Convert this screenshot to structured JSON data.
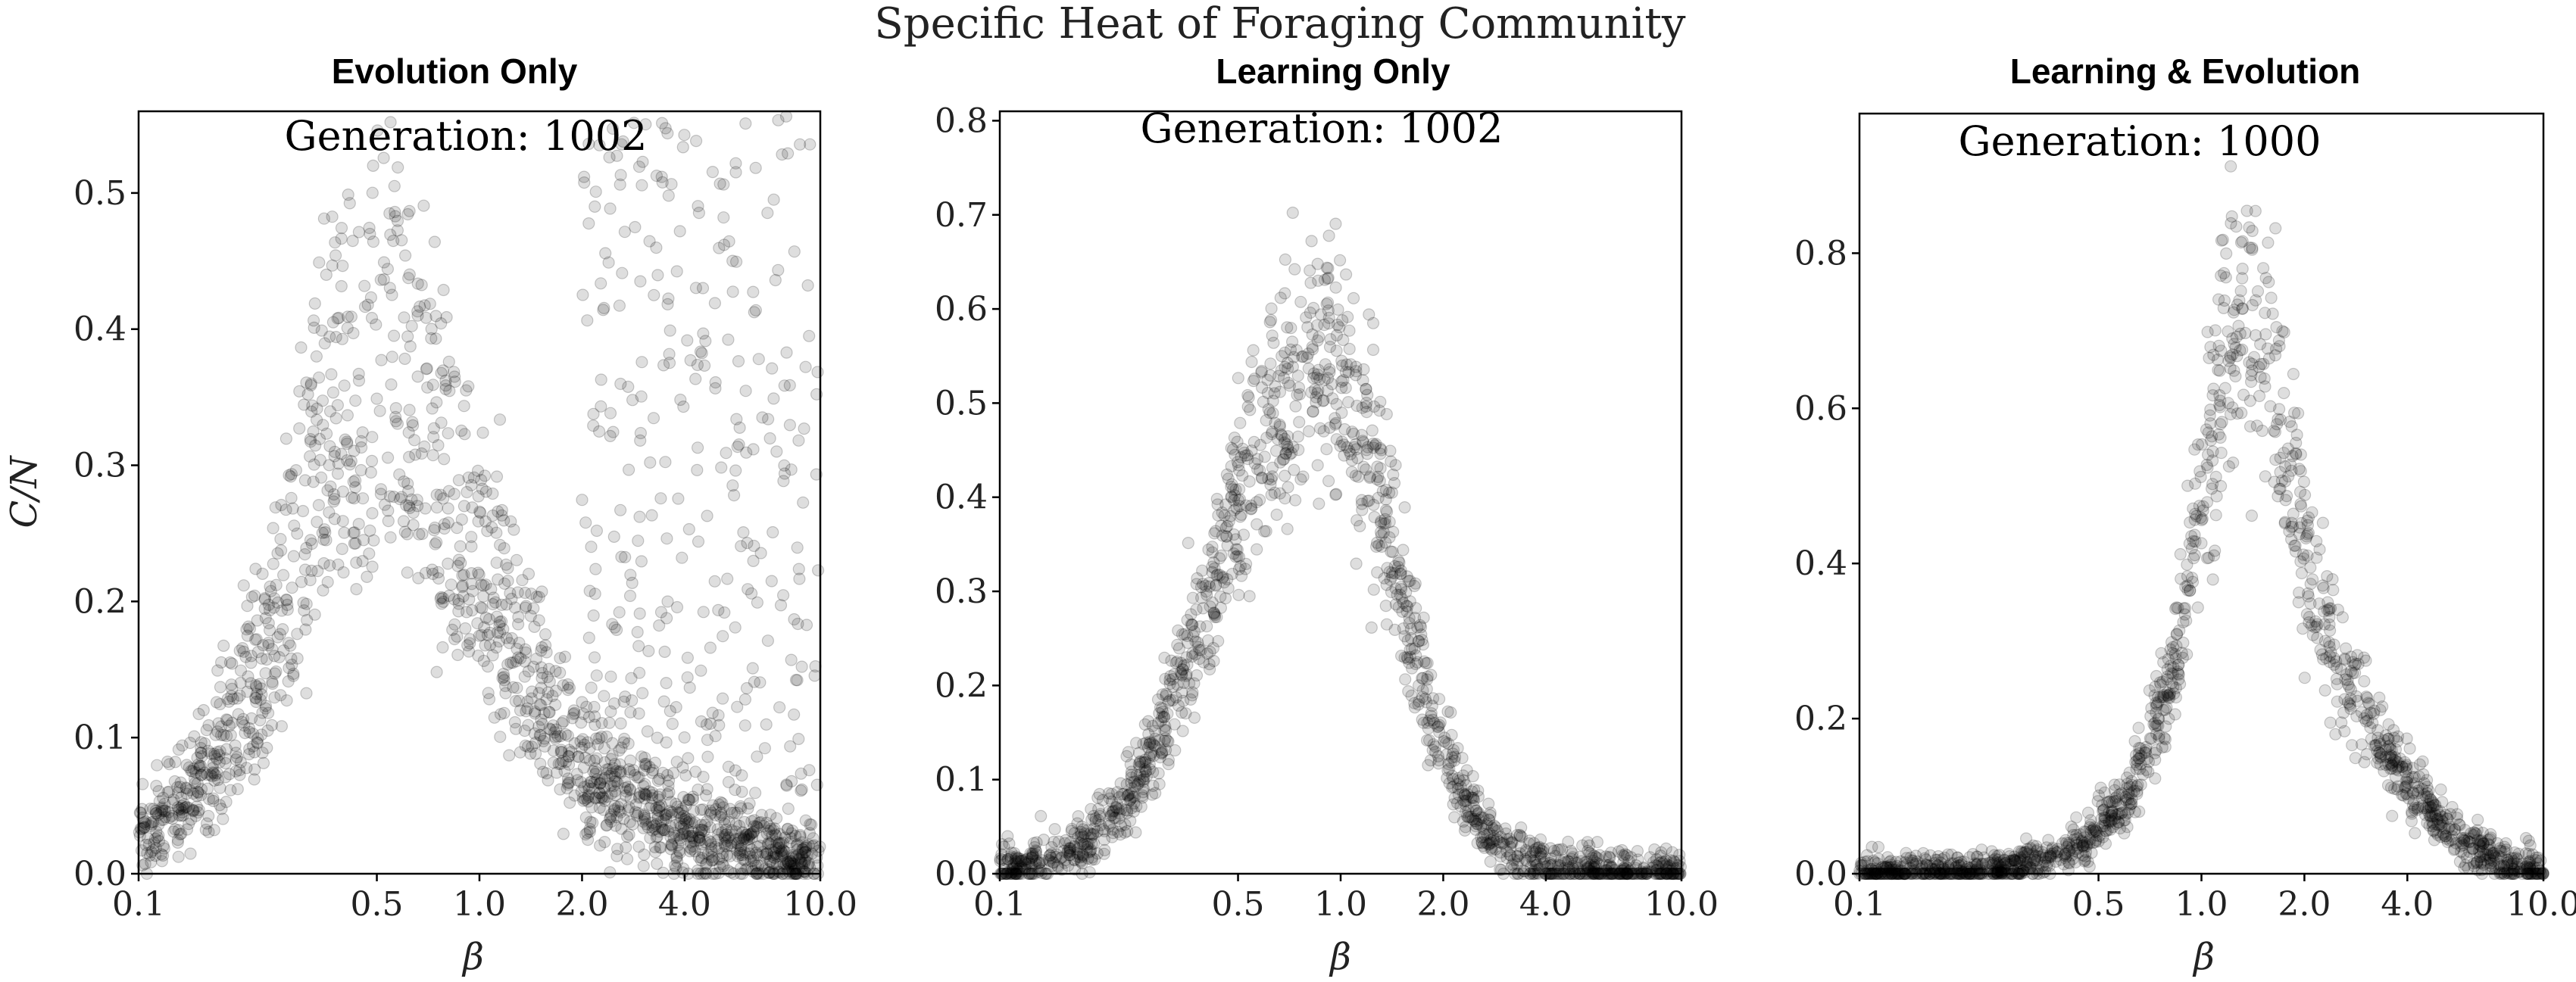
{
  "figure": {
    "suptitle": "Specific Heat of Foraging Community"
  },
  "chart_data": [
    {
      "type": "scatter",
      "title": "Evolution Only",
      "annotation": "Generation: 1002",
      "xlabel": "β",
      "ylabel": "C/N",
      "xscale": "log",
      "xlim": [
        0.1,
        10.0
      ],
      "ylim": [
        0.0,
        0.56
      ],
      "xticks": [
        0.1,
        0.5,
        1.0,
        2.0,
        4.0,
        10.0
      ],
      "xtick_labels": [
        "0.1",
        "0.5",
        "1.0",
        "2.0",
        "4.0",
        "10.0"
      ],
      "yticks": [
        0.0,
        0.1,
        0.2,
        0.3,
        0.4,
        0.5
      ],
      "ytick_labels": [
        "0.0",
        "0.1",
        "0.2",
        "0.3",
        "0.4",
        "0.5"
      ],
      "grid": false,
      "marker_color": "#000000",
      "series": [
        {
          "peak_beta": 0.55,
          "band_peaks": [
            0.27,
            0.31,
            0.35,
            0.44,
            0.5
          ],
          "low_end_value": 0.025,
          "x": [
            0.1,
            0.12,
            0.15,
            0.18,
            0.22,
            0.26,
            0.3,
            0.35,
            0.4,
            0.45,
            0.5,
            0.55,
            0.6,
            0.7,
            0.8,
            1.0,
            1.3,
            1.6,
            2.0,
            2.5,
            3.0,
            4.0,
            5.0,
            6.0,
            8.0,
            10.0
          ],
          "y": [
            0.028,
            0.04,
            0.06,
            0.09,
            0.13,
            0.18,
            0.23,
            0.28,
            0.32,
            0.34,
            0.35,
            0.35,
            0.34,
            0.3,
            0.26,
            0.2,
            0.15,
            0.11,
            0.08,
            0.06,
            0.045,
            0.03,
            0.022,
            0.018,
            0.012,
            0.01
          ],
          "scatter_cloud": {
            "x_range": [
              2.0,
              10.0
            ],
            "y_range": [
              0.0,
              0.56
            ]
          }
        }
      ]
    },
    {
      "type": "scatter",
      "title": "Learning Only",
      "annotation": "Generation: 1002",
      "xlabel": "β",
      "xscale": "log",
      "xlim": [
        0.1,
        10.0
      ],
      "ylim": [
        0.0,
        0.81
      ],
      "xticks": [
        0.1,
        0.5,
        1.0,
        2.0,
        4.0,
        10.0
      ],
      "xtick_labels": [
        "0.1",
        "0.5",
        "1.0",
        "2.0",
        "4.0",
        "10.0"
      ],
      "yticks": [
        0.0,
        0.1,
        0.2,
        0.3,
        0.4,
        0.5,
        0.6,
        0.7,
        0.8
      ],
      "ytick_labels": [
        "0.0",
        "0.1",
        "0.2",
        "0.3",
        "0.4",
        "0.5",
        "0.6",
        "0.7",
        "0.8"
      ],
      "grid": false,
      "marker_color": "#000000",
      "series": [
        {
          "peak_beta": 0.9,
          "peak_value": 0.6,
          "x": [
            0.1,
            0.15,
            0.2,
            0.25,
            0.3,
            0.4,
            0.5,
            0.6,
            0.7,
            0.8,
            0.9,
            1.0,
            1.2,
            1.5,
            1.8,
            2.2,
            2.6,
            3.0,
            4.0,
            6.0,
            10.0
          ],
          "y": [
            0.005,
            0.02,
            0.05,
            0.1,
            0.16,
            0.3,
            0.42,
            0.5,
            0.55,
            0.58,
            0.59,
            0.57,
            0.48,
            0.32,
            0.2,
            0.1,
            0.05,
            0.025,
            0.008,
            0.002,
            0.0
          ]
        }
      ]
    },
    {
      "type": "scatter",
      "title": "Learning & Evolution",
      "annotation": "Generation: 1000",
      "xlabel": "β",
      "xscale": "log",
      "xlim": [
        0.1,
        10.0
      ],
      "ylim": [
        0.0,
        0.98
      ],
      "xticks": [
        0.1,
        0.5,
        1.0,
        2.0,
        4.0,
        10.0
      ],
      "xtick_labels": [
        "0.1",
        "0.5",
        "1.0",
        "2.0",
        "4.0",
        "10.0"
      ],
      "yticks": [
        0.0,
        0.2,
        0.4,
        0.6,
        0.8
      ],
      "ytick_labels": [
        "0.0",
        "0.2",
        "0.4",
        "0.6",
        "0.8"
      ],
      "grid": false,
      "marker_color": "#000000",
      "series": [
        {
          "peak_beta": 1.3,
          "peak_value": 0.78,
          "x": [
            0.1,
            0.2,
            0.3,
            0.4,
            0.5,
            0.6,
            0.8,
            1.0,
            1.2,
            1.4,
            1.6,
            2.0,
            2.5,
            3.0,
            4.0,
            5.0,
            6.0,
            8.0,
            10.0
          ],
          "y": [
            0.0,
            0.002,
            0.01,
            0.03,
            0.06,
            0.1,
            0.25,
            0.5,
            0.74,
            0.77,
            0.7,
            0.45,
            0.3,
            0.22,
            0.12,
            0.07,
            0.04,
            0.015,
            0.005
          ]
        }
      ]
    }
  ]
}
